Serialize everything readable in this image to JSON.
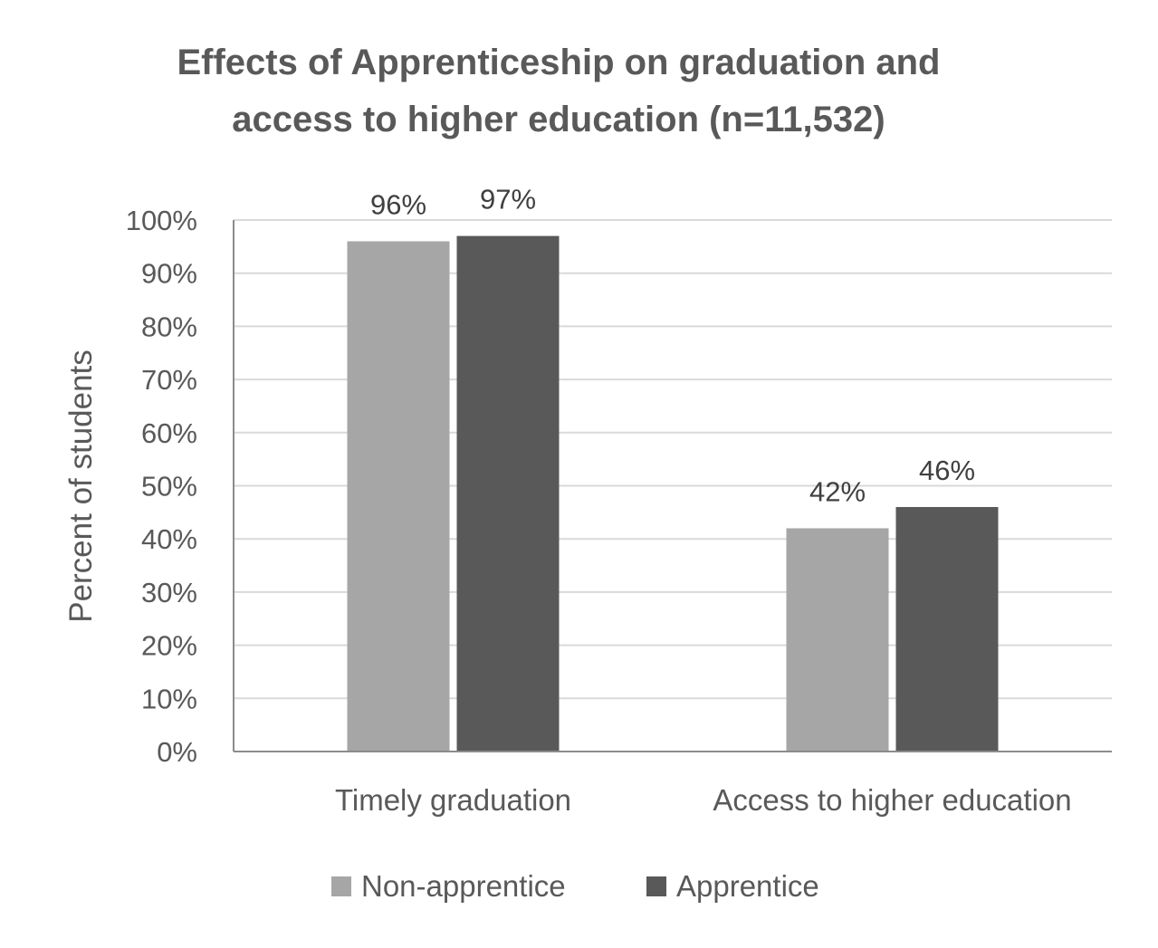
{
  "chart_data": {
    "type": "bar",
    "title_lines": [
      "Effects of Apprenticeship on graduation and",
      "access to higher education (n=11,532)"
    ],
    "ylabel": "Percent of students",
    "xlabel": "",
    "categories": [
      "Timely graduation",
      "Access to higher education"
    ],
    "series": [
      {
        "name": "Non-apprentice",
        "values": [
          96,
          42
        ],
        "labels": [
          "96%",
          "42%"
        ],
        "color": "#a6a6a6"
      },
      {
        "name": "Apprentice",
        "values": [
          97,
          46
        ],
        "labels": [
          "97%",
          "46%"
        ],
        "color": "#595959"
      }
    ],
    "ylim": [
      0,
      100
    ],
    "yticks": [
      0,
      10,
      20,
      30,
      40,
      50,
      60,
      70,
      80,
      90,
      100
    ],
    "ytick_labels": [
      "0%",
      "10%",
      "20%",
      "30%",
      "40%",
      "50%",
      "60%",
      "70%",
      "80%",
      "90%",
      "100%"
    ],
    "grid": true,
    "legend_position": "bottom"
  }
}
